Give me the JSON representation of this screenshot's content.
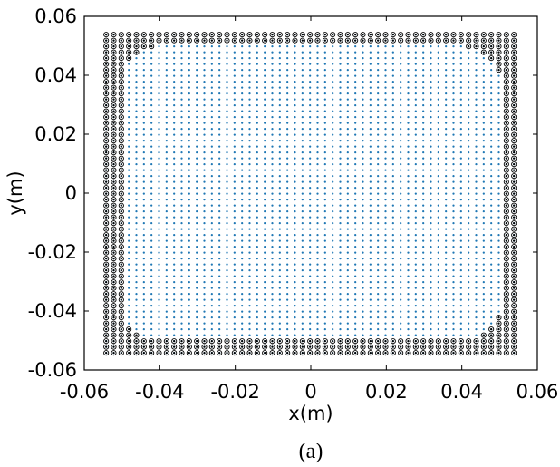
{
  "chart_data": {
    "type": "scatter",
    "title": "",
    "xlabel": "x(m)",
    "ylabel": "y(m)",
    "caption": "(a)",
    "xlim": [
      -0.06,
      0.06
    ],
    "ylim": [
      -0.06,
      0.06
    ],
    "x_ticks": [
      "-0.06",
      "-0.04",
      "-0.02",
      "0",
      "0.02",
      "0.04",
      "0.06"
    ],
    "y_ticks": [
      "-0.06",
      "-0.04",
      "-0.02",
      "0",
      "0.02",
      "0.04",
      "0.06"
    ],
    "grid": false,
    "legend": "none",
    "grid_points": {
      "x_min": -0.0542,
      "x_max": 0.0542,
      "y_min": -0.0542,
      "y_max": 0.0542,
      "step": 0.002
    },
    "series": [
      {
        "marker": "dot",
        "color": "#1f77b4",
        "description_of_set": "all grid points"
      },
      {
        "marker": "circled-dot",
        "color": "#000000",
        "region": "outer frame and rounded corner regions"
      }
    ],
    "boundary": {
      "edge_band": 0.0042,
      "corner_radius": 0.015,
      "corner_band": 0.0042
    },
    "colors": {
      "interior_dot": "#1f77b4",
      "boundary_marker": "#000000",
      "axes": "#000000"
    }
  }
}
